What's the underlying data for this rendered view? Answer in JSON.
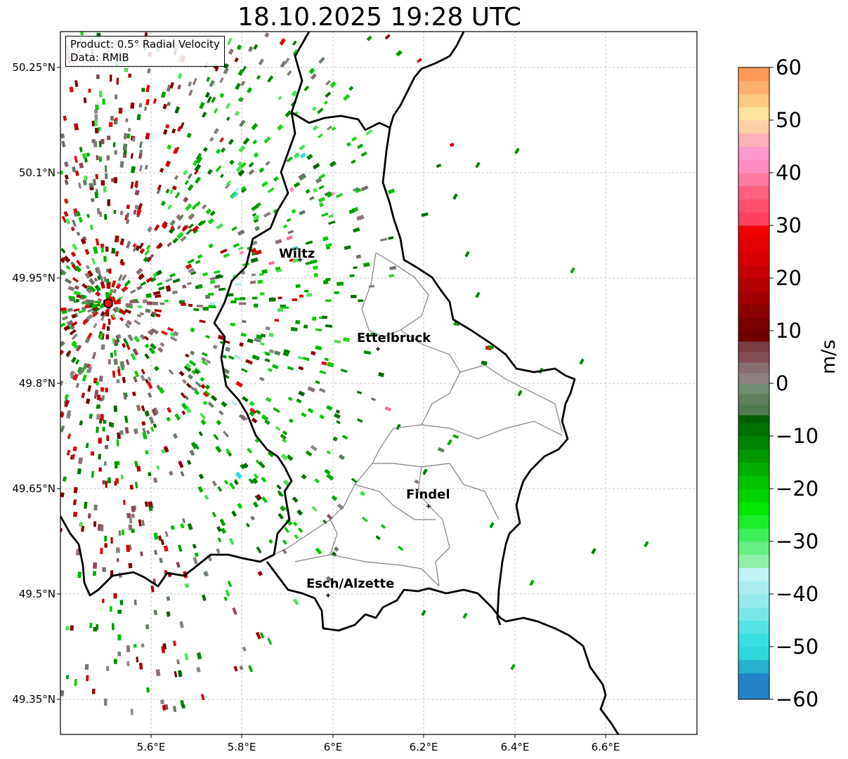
{
  "title": "18.10.2025 19:28 UTC",
  "info": {
    "product": "Product: 0.5° Radial Velocity",
    "data": "Data: RMIB"
  },
  "map": {
    "lon_range": [
      5.4,
      6.8
    ],
    "lat_range": [
      49.3,
      50.3
    ],
    "lat_ticks": [
      "50.25°N",
      "50.1°N",
      "49.95°N",
      "49.8°N",
      "49.65°N",
      "49.5°N",
      "49.35°N"
    ],
    "lon_ticks": [
      "5.6°E",
      "5.8°E",
      "6°E",
      "6.2°E",
      "6.4°E",
      "6.6°E"
    ],
    "radar_site": {
      "lon": 5.505,
      "lat": 49.914
    },
    "cities": [
      {
        "name": "Wiltz",
        "lon": 5.93,
        "lat": 49.97
      },
      {
        "name": "Ettelbruck",
        "lon": 6.1,
        "lat": 49.85
      },
      {
        "name": "Findel",
        "lon": 6.21,
        "lat": 49.63
      },
      {
        "name": "Esch/Alzette",
        "lon": 5.99,
        "lat": 49.5
      }
    ]
  },
  "colorbar": {
    "label": "m/s",
    "min": -60,
    "max": 60,
    "ticks": [
      "60",
      "50",
      "40",
      "30",
      "20",
      "10",
      "0",
      "−10",
      "−20",
      "−30",
      "−40",
      "−50",
      "−60"
    ],
    "colors": {
      "orange": "#ff9a55",
      "pink": "#ff6f95",
      "red": "#ee0000",
      "darkred": "#7a0000",
      "gray": "#8c7373",
      "gray_green": "#5f7f5f",
      "dark_green": "#006000",
      "green": "#00cc00",
      "light_green": "#7ff07f",
      "cyan": "#30dede",
      "blue": "#2383c8"
    }
  }
}
